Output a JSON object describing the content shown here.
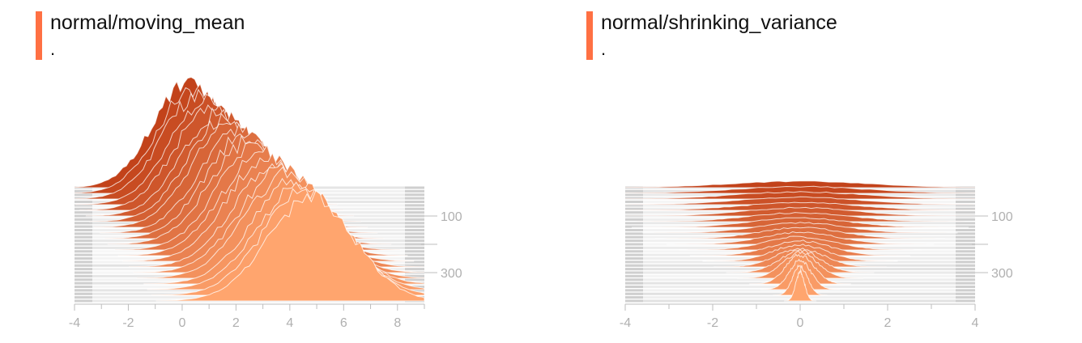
{
  "charts": [
    {
      "title": "normal/moving_mean",
      "subtitle": ".",
      "accent_color": "#ff7043",
      "chart_data": {
        "type": "area",
        "x_ticks": [
          "-4",
          "-2",
          "0",
          "2",
          "4",
          "6",
          "8"
        ],
        "xlim": [
          -4,
          9
        ],
        "y_ticks": [
          "100",
          "300"
        ],
        "y_tick_values": [
          100,
          300
        ],
        "step_range": [
          0,
          400
        ],
        "grid": true,
        "color_old": "#c2421a",
        "color_new": "#ffa56e",
        "distribution": {
          "kind": "moving_mean",
          "center_start": 0.2,
          "center_end": 4.8,
          "sigma_start": 1.3,
          "sigma_end": 1.6
        },
        "series": [
          {
            "step": 0,
            "center": 0.2,
            "sigma": 1.3
          },
          {
            "step": 20,
            "center": 0.4,
            "sigma": 1.32
          },
          {
            "step": 40,
            "center": 0.6,
            "sigma": 1.33
          },
          {
            "step": 60,
            "center": 0.9,
            "sigma": 1.35
          },
          {
            "step": 80,
            "center": 1.1,
            "sigma": 1.36
          },
          {
            "step": 100,
            "center": 1.4,
            "sigma": 1.38
          },
          {
            "step": 120,
            "center": 1.6,
            "sigma": 1.4
          },
          {
            "step": 140,
            "center": 1.8,
            "sigma": 1.41
          },
          {
            "step": 160,
            "center": 2.1,
            "sigma": 1.43
          },
          {
            "step": 180,
            "center": 2.3,
            "sigma": 1.44
          },
          {
            "step": 200,
            "center": 2.5,
            "sigma": 1.46
          },
          {
            "step": 220,
            "center": 2.8,
            "sigma": 1.47
          },
          {
            "step": 240,
            "center": 3.0,
            "sigma": 1.49
          },
          {
            "step": 260,
            "center": 3.2,
            "sigma": 1.5
          },
          {
            "step": 280,
            "center": 3.5,
            "sigma": 1.52
          },
          {
            "step": 300,
            "center": 3.7,
            "sigma": 1.53
          },
          {
            "step": 320,
            "center": 3.9,
            "sigma": 1.55
          },
          {
            "step": 340,
            "center": 4.2,
            "sigma": 1.56
          },
          {
            "step": 360,
            "center": 4.4,
            "sigma": 1.58
          },
          {
            "step": 380,
            "center": 4.6,
            "sigma": 1.59
          },
          {
            "step": 400,
            "center": 4.8,
            "sigma": 1.6
          }
        ]
      }
    },
    {
      "title": "normal/shrinking_variance",
      "subtitle": ".",
      "accent_color": "#ff7043",
      "chart_data": {
        "type": "area",
        "x_ticks": [
          "-4",
          "-2",
          "0",
          "2",
          "4"
        ],
        "xlim": [
          -4,
          4
        ],
        "y_ticks": [
          "100",
          "300"
        ],
        "y_tick_values": [
          100,
          300
        ],
        "step_range": [
          0,
          400
        ],
        "grid": true,
        "color_old": "#c2421a",
        "color_new": "#ffa56e",
        "distribution": {
          "kind": "shrinking_variance",
          "center": 0,
          "sigma_start": 1.6,
          "sigma_end": 0.1
        },
        "series": [
          {
            "step": 0,
            "center": 0,
            "sigma": 1.6
          },
          {
            "step": 20,
            "center": 0,
            "sigma": 1.52
          },
          {
            "step": 40,
            "center": 0,
            "sigma": 1.45
          },
          {
            "step": 60,
            "center": 0,
            "sigma": 1.37
          },
          {
            "step": 80,
            "center": 0,
            "sigma": 1.3
          },
          {
            "step": 100,
            "center": 0,
            "sigma": 1.22
          },
          {
            "step": 120,
            "center": 0,
            "sigma": 1.15
          },
          {
            "step": 140,
            "center": 0,
            "sigma": 1.07
          },
          {
            "step": 160,
            "center": 0,
            "sigma": 1.0
          },
          {
            "step": 180,
            "center": 0,
            "sigma": 0.92
          },
          {
            "step": 200,
            "center": 0,
            "sigma": 0.85
          },
          {
            "step": 220,
            "center": 0,
            "sigma": 0.77
          },
          {
            "step": 240,
            "center": 0,
            "sigma": 0.7
          },
          {
            "step": 260,
            "center": 0,
            "sigma": 0.62
          },
          {
            "step": 280,
            "center": 0,
            "sigma": 0.55
          },
          {
            "step": 300,
            "center": 0,
            "sigma": 0.47
          },
          {
            "step": 320,
            "center": 0,
            "sigma": 0.4
          },
          {
            "step": 340,
            "center": 0,
            "sigma": 0.32
          },
          {
            "step": 360,
            "center": 0,
            "sigma": 0.25
          },
          {
            "step": 380,
            "center": 0,
            "sigma": 0.17
          },
          {
            "step": 400,
            "center": 0,
            "sigma": 0.1
          }
        ]
      }
    }
  ]
}
